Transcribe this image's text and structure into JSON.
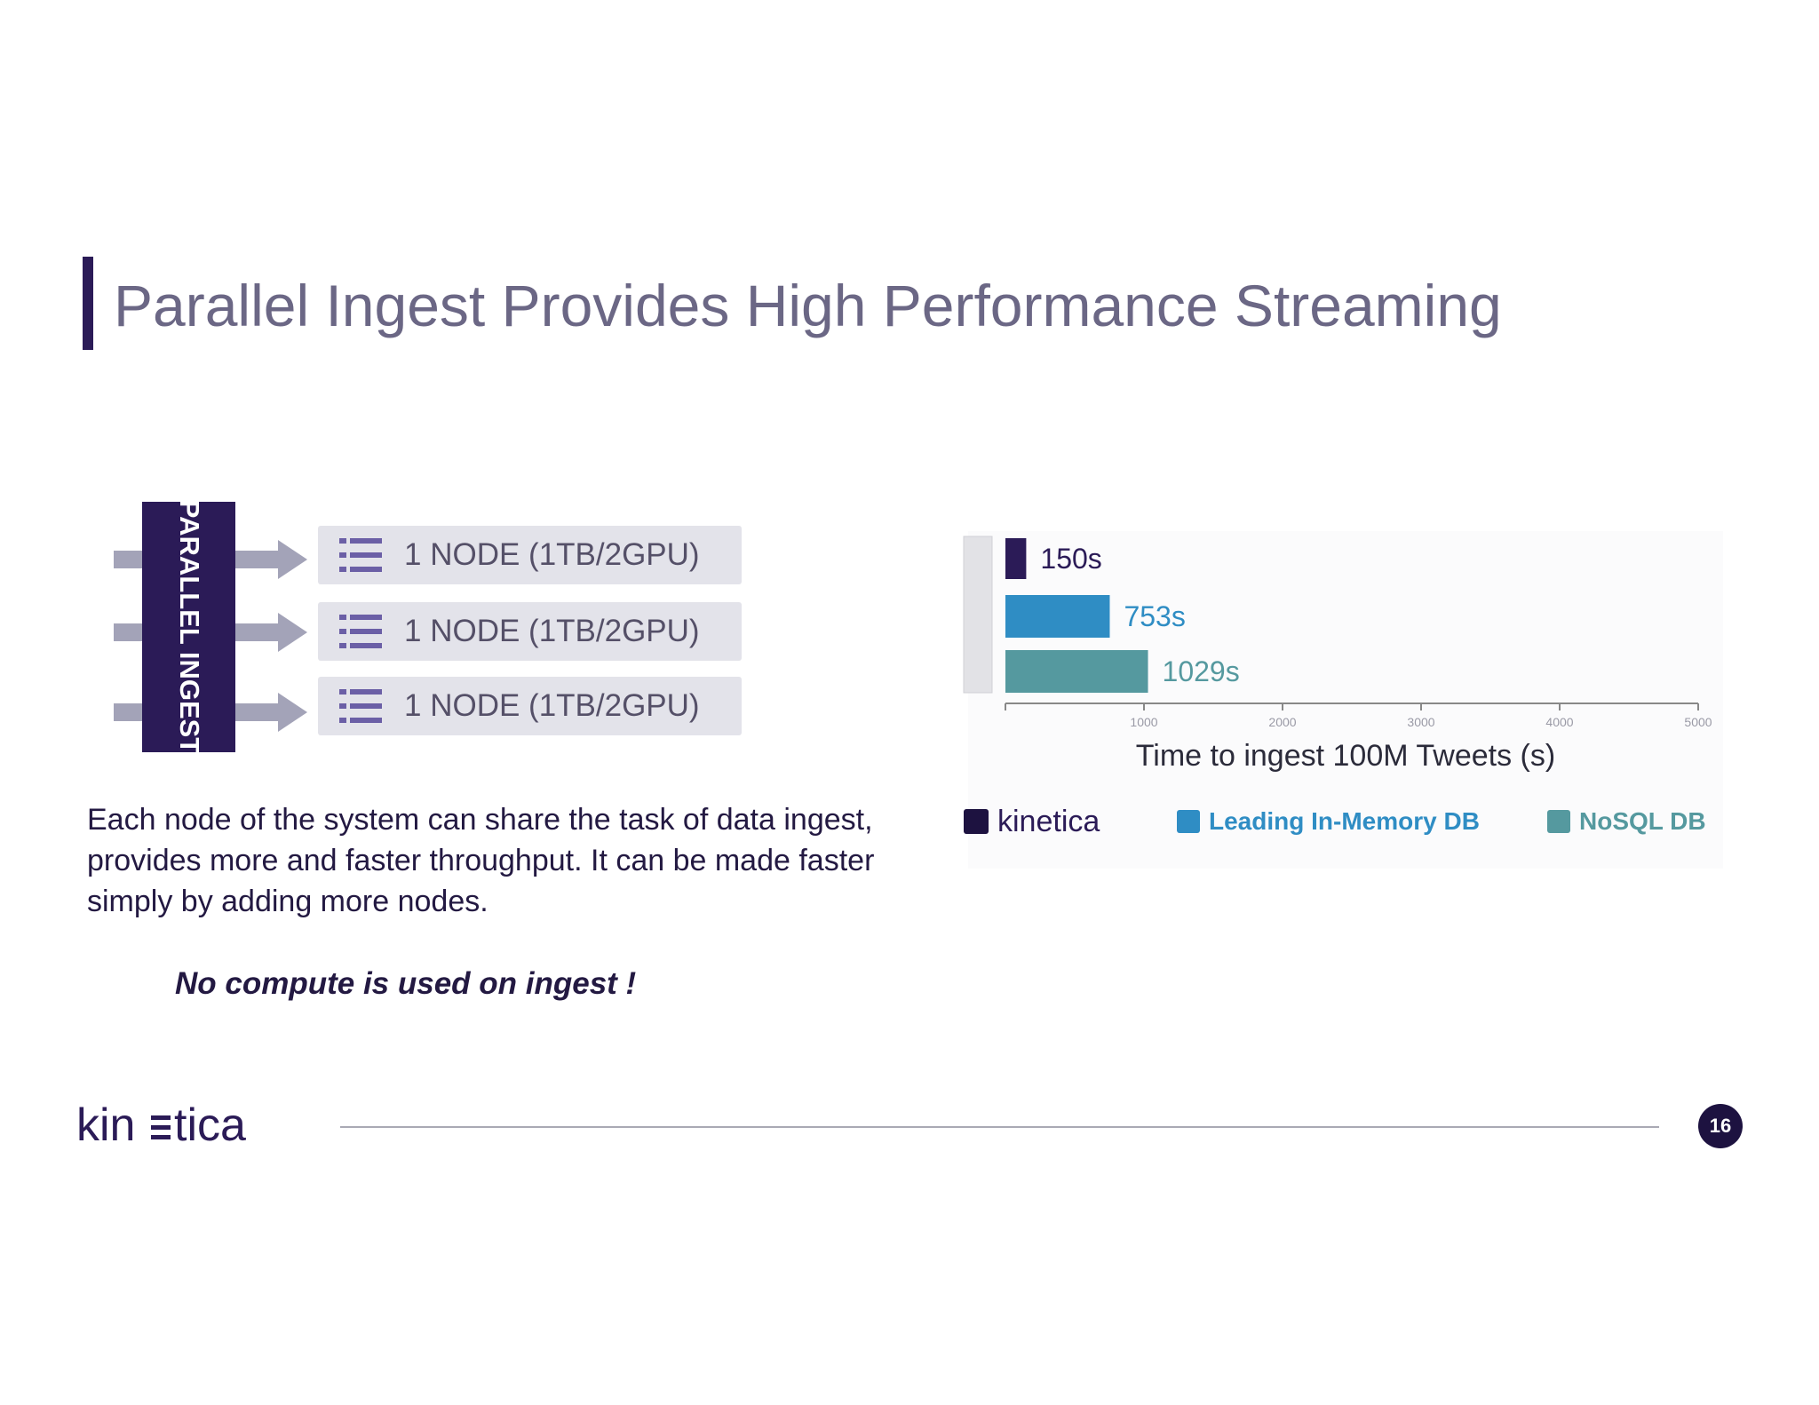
{
  "slide": {
    "title": "Parallel Ingest Provides High Performance Streaming",
    "page_number": "16",
    "accent": "#2b1b57"
  },
  "diagram": {
    "ingest_label": "PARALLEL INGEST",
    "nodes": [
      {
        "label": "1 NODE (1TB/2GPU)"
      },
      {
        "label": "1 NODE (1TB/2GPU)"
      },
      {
        "label": "1 NODE (1TB/2GPU)"
      }
    ]
  },
  "text": {
    "description": "Each node of the system can share the task of data ingest, provides more and faster throughput. It can be made faster simply by adding more nodes.",
    "note": "No compute is used on ingest !"
  },
  "chart_data": {
    "type": "bar",
    "orientation": "horizontal",
    "xlabel": "Time to ingest 100M Tweets (s)",
    "xlim": [
      0,
      5000
    ],
    "xticks": [
      1000,
      2000,
      3000,
      4000,
      5000
    ],
    "grid": false,
    "legend_position": "bottom",
    "series": [
      {
        "name": "kinetica",
        "value": 150,
        "label": "150s",
        "color": "#2b1b57"
      },
      {
        "name": "Leading In-Memory DB",
        "value": 753,
        "label": "753s",
        "color": "#2f8dc4"
      },
      {
        "name": "NoSQL DB",
        "value": 1029,
        "label": "1029s",
        "color": "#55999f"
      }
    ]
  }
}
